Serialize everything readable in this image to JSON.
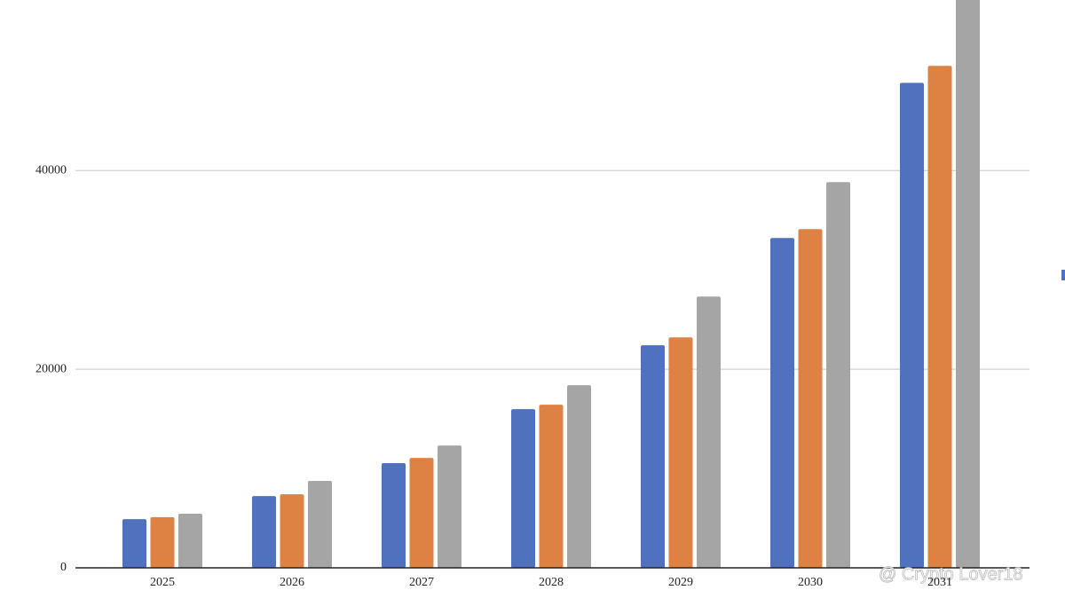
{
  "chart_data": {
    "type": "bar",
    "categories": [
      "2025",
      "2026",
      "2027",
      "2028",
      "2029",
      "2030",
      "2031"
    ],
    "series": [
      {
        "color": "#5071be",
        "values": [
          4900,
          7230,
          10540,
          15980,
          22410,
          33210,
          48840
        ]
      },
      {
        "color": "#de8244",
        "values": [
          5100,
          7400,
          11070,
          16430,
          23210,
          34110,
          50540
        ]
      },
      {
        "color": "#a5a5a5",
        "values": [
          5450,
          8750,
          12320,
          18390,
          27320,
          38840,
          58000
        ]
      }
    ],
    "ylim": [
      0,
      57000
    ],
    "yticks": [
      0,
      20000,
      40000
    ],
    "grid": true,
    "watermark": "@ Crypto Lover18"
  }
}
